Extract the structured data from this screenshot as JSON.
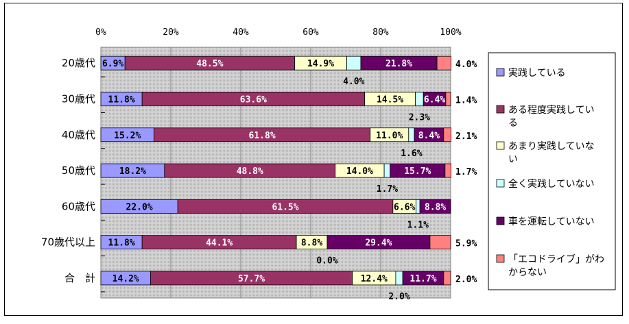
{
  "chart_data": {
    "type": "bar",
    "stacked": "100%",
    "orientation": "horizontal",
    "title": "",
    "xlabel": "",
    "ylabel": "",
    "xlim": [
      0,
      100
    ],
    "x_ticks": [
      "0%",
      "20%",
      "40%",
      "60%",
      "80%",
      "100%"
    ],
    "grid": true,
    "legend_position": "right",
    "categories": [
      "20歳代",
      "30歳代",
      "40歳代",
      "50歳代",
      "60歳代",
      "70歳代以上",
      "合　計"
    ],
    "series": [
      {
        "name": "実践している",
        "color": "#9999ff",
        "values": [
          6.9,
          11.8,
          15.2,
          18.2,
          22.0,
          11.8,
          14.2
        ]
      },
      {
        "name": "ある程度実践している",
        "color": "#993366",
        "values": [
          48.5,
          63.6,
          61.8,
          48.8,
          61.5,
          44.1,
          57.7
        ]
      },
      {
        "name": "あまり実践していない",
        "color": "#ffffcc",
        "values": [
          14.9,
          14.5,
          11.0,
          14.0,
          6.6,
          8.8,
          12.4
        ]
      },
      {
        "name": "全く実践していない",
        "color": "#ccffff",
        "values": [
          4.0,
          2.3,
          1.6,
          1.7,
          1.1,
          0.0,
          2.0
        ]
      },
      {
        "name": "車を運転していない",
        "color": "#660066",
        "values": [
          21.8,
          6.4,
          8.4,
          15.7,
          8.8,
          29.4,
          11.7
        ]
      },
      {
        "name": "「エコドライブ」がわからない",
        "color": "#ff8080",
        "values": [
          4.0,
          1.4,
          2.1,
          1.7,
          0.0,
          5.9,
          2.0
        ]
      }
    ],
    "labels_inside": [
      [
        "6.9%",
        "48.5%",
        "14.9%",
        "",
        "21.8%",
        ""
      ],
      [
        "11.8%",
        "63.6%",
        "14.5%",
        "",
        "6.4%",
        ""
      ],
      [
        "15.2%",
        "61.8%",
        "11.0%",
        "",
        "8.4%",
        ""
      ],
      [
        "18.2%",
        "48.8%",
        "14.0%",
        "",
        "15.7%",
        ""
      ],
      [
        "22.0%",
        "61.5%",
        "6.6%",
        "",
        "8.8%",
        ""
      ],
      [
        "11.8%",
        "44.1%",
        "8.8%",
        "",
        "29.4%",
        ""
      ],
      [
        "14.2%",
        "57.7%",
        "12.4%",
        "",
        "11.7%",
        ""
      ]
    ],
    "labels_right": [
      "4.0%",
      "1.4%",
      "2.1%",
      "1.7%",
      "",
      "5.9%",
      "2.0%"
    ],
    "labels_below": [
      "4.0%",
      "2.3%",
      "1.6%",
      "1.7%",
      "1.1%",
      "0.0%",
      "2.0%"
    ],
    "legend": [
      [
        "実践している"
      ],
      [
        "ある程度実践してい",
        "る"
      ],
      [
        "あまり実践していな",
        "い"
      ],
      [
        "全く実践していない"
      ],
      [
        "車を運転していない"
      ],
      [
        "「エコドライブ」がわ",
        "からない"
      ]
    ]
  }
}
